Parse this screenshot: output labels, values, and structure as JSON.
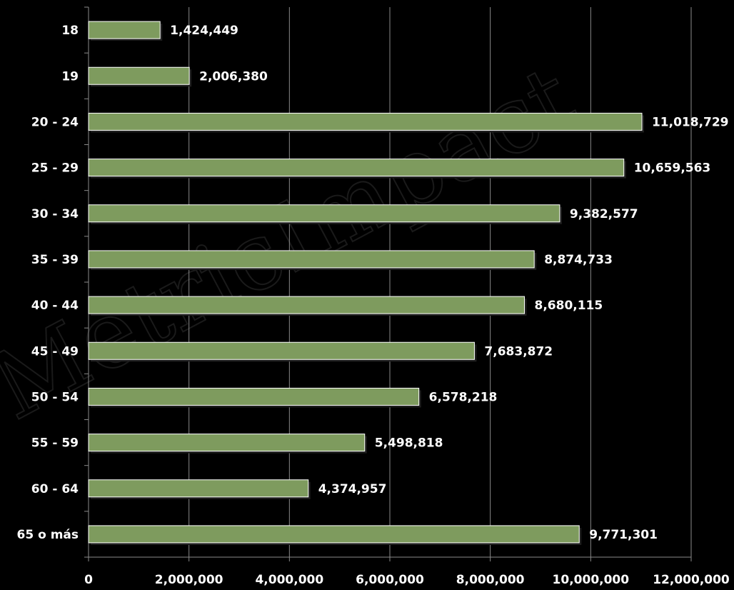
{
  "chart_data": {
    "type": "bar",
    "orientation": "horizontal",
    "categories": [
      "18",
      "19",
      "20 - 24",
      "25 - 29",
      "30 - 34",
      "35 - 39",
      "40 - 44",
      "45 - 49",
      "50 - 54",
      "55 - 59",
      "60 - 64",
      "65 o más"
    ],
    "values": [
      1424449,
      2006380,
      11018729,
      10659563,
      9382577,
      8874733,
      8680115,
      7683872,
      6578218,
      5498818,
      4374957,
      9771301
    ],
    "value_labels": [
      "1,424,449",
      "2,006,380",
      "11,018,729",
      "10,659,563",
      "9,382,577",
      "8,874,733",
      "8,680,115",
      "7,683,872",
      "6,578,218",
      "5,498,818",
      "4,374,957",
      "9,771,301"
    ],
    "xlim": [
      0,
      12000000
    ],
    "xticks": [
      0,
      2000000,
      4000000,
      6000000,
      8000000,
      10000000,
      12000000
    ],
    "xtick_labels": [
      "0",
      "2,000,000",
      "4,000,000",
      "6,000,000",
      "8,000,000",
      "10,000,000",
      "12,000,000"
    ],
    "title": "",
    "xlabel": "",
    "ylabel": "",
    "grid": "vertical",
    "legend": "none",
    "colors": {
      "background": "#000000",
      "bar_fill": "#7e9b5e",
      "bar_stroke": "#ffffff",
      "grid": "#8a8a8a",
      "text": "#ffffff"
    },
    "watermark": "MetricImpact"
  }
}
